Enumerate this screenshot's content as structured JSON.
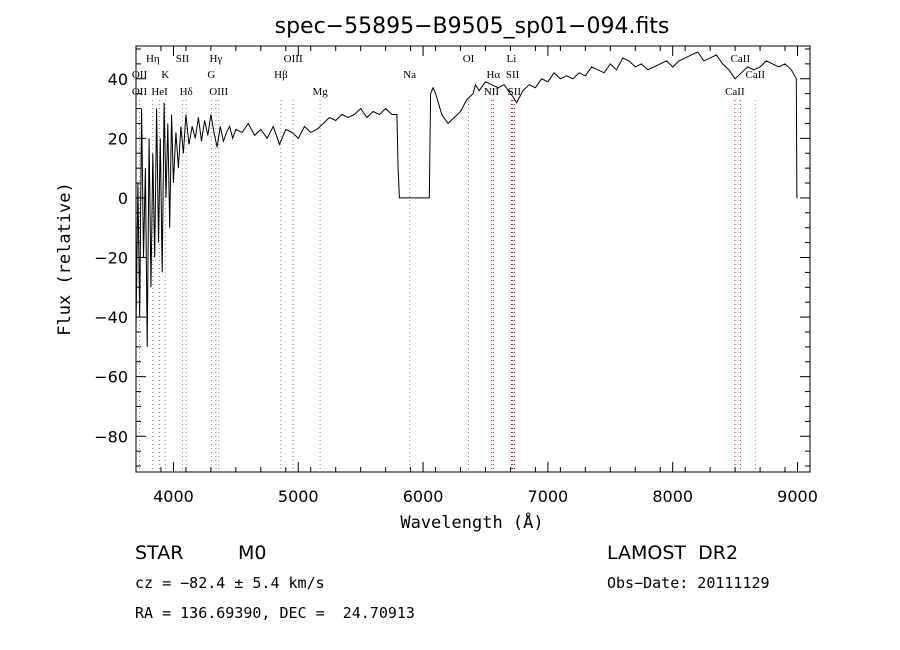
{
  "chart_data": {
    "type": "line",
    "title": "spec−55895−B9505_sp01−094.fits",
    "xlabel": "Wavelength (Å)",
    "ylabel": "Flux (relative)",
    "xlim": [
      3700,
      9100
    ],
    "ylim": [
      -92,
      51
    ],
    "x_ticks": [
      4000,
      5000,
      6000,
      7000,
      8000,
      9000
    ],
    "y_ticks": [
      -80,
      -60,
      -40,
      -20,
      0,
      20,
      40
    ],
    "series": [
      {
        "color": "#000000",
        "points": [
          [
            3700,
            -45
          ],
          [
            3715,
            5
          ],
          [
            3730,
            -40
          ],
          [
            3745,
            30
          ],
          [
            3760,
            -20
          ],
          [
            3775,
            10
          ],
          [
            3790,
            -50
          ],
          [
            3805,
            20
          ],
          [
            3820,
            -30
          ],
          [
            3835,
            15
          ],
          [
            3850,
            -20
          ],
          [
            3865,
            30
          ],
          [
            3880,
            -15
          ],
          [
            3895,
            20
          ],
          [
            3910,
            -25
          ],
          [
            3925,
            32
          ],
          [
            3940,
            0
          ],
          [
            3955,
            25
          ],
          [
            3970,
            -10
          ],
          [
            3985,
            28
          ],
          [
            4000,
            5
          ],
          [
            4020,
            22
          ],
          [
            4040,
            10
          ],
          [
            4060,
            24
          ],
          [
            4080,
            15
          ],
          [
            4100,
            28
          ],
          [
            4125,
            18
          ],
          [
            4150,
            24
          ],
          [
            4175,
            20
          ],
          [
            4200,
            27
          ],
          [
            4225,
            19
          ],
          [
            4250,
            26
          ],
          [
            4275,
            21
          ],
          [
            4300,
            28
          ],
          [
            4325,
            22
          ],
          [
            4350,
            17
          ],
          [
            4375,
            24
          ],
          [
            4400,
            19
          ],
          [
            4425,
            22
          ],
          [
            4450,
            24
          ],
          [
            4475,
            20
          ],
          [
            4500,
            23
          ],
          [
            4550,
            22
          ],
          [
            4600,
            25
          ],
          [
            4650,
            21
          ],
          [
            4700,
            23
          ],
          [
            4750,
            20
          ],
          [
            4800,
            24
          ],
          [
            4850,
            18
          ],
          [
            4900,
            23
          ],
          [
            4950,
            22
          ],
          [
            5000,
            20
          ],
          [
            5050,
            24
          ],
          [
            5100,
            22
          ],
          [
            5150,
            23
          ],
          [
            5200,
            25
          ],
          [
            5250,
            27
          ],
          [
            5300,
            26
          ],
          [
            5350,
            28
          ],
          [
            5400,
            27
          ],
          [
            5450,
            28
          ],
          [
            5500,
            30
          ],
          [
            5550,
            27
          ],
          [
            5600,
            29
          ],
          [
            5650,
            28
          ],
          [
            5700,
            30
          ],
          [
            5750,
            28
          ],
          [
            5790,
            28
          ],
          [
            5800,
            10
          ],
          [
            5810,
            0
          ],
          [
            5830,
            0
          ],
          [
            5900,
            0
          ],
          [
            6000,
            0
          ],
          [
            6050,
            0
          ],
          [
            6060,
            35
          ],
          [
            6080,
            37
          ],
          [
            6100,
            35
          ],
          [
            6150,
            28
          ],
          [
            6200,
            25
          ],
          [
            6250,
            27
          ],
          [
            6300,
            29
          ],
          [
            6350,
            33
          ],
          [
            6400,
            35
          ],
          [
            6420,
            38
          ],
          [
            6450,
            36
          ],
          [
            6500,
            39
          ],
          [
            6550,
            38
          ],
          [
            6600,
            37
          ],
          [
            6650,
            38
          ],
          [
            6700,
            35
          ],
          [
            6720,
            34
          ],
          [
            6750,
            32
          ],
          [
            6800,
            36
          ],
          [
            6850,
            38
          ],
          [
            6900,
            37
          ],
          [
            6950,
            40
          ],
          [
            7000,
            39
          ],
          [
            7050,
            42
          ],
          [
            7100,
            40
          ],
          [
            7150,
            41
          ],
          [
            7200,
            40
          ],
          [
            7250,
            42
          ],
          [
            7300,
            41
          ],
          [
            7350,
            44
          ],
          [
            7400,
            43
          ],
          [
            7450,
            42
          ],
          [
            7500,
            45
          ],
          [
            7550,
            43
          ],
          [
            7600,
            47
          ],
          [
            7650,
            46
          ],
          [
            7700,
            44
          ],
          [
            7750,
            45
          ],
          [
            7800,
            43
          ],
          [
            7850,
            44
          ],
          [
            7900,
            45
          ],
          [
            7950,
            46
          ],
          [
            8000,
            44
          ],
          [
            8050,
            46
          ],
          [
            8100,
            47
          ],
          [
            8150,
            48
          ],
          [
            8200,
            49
          ],
          [
            8250,
            46
          ],
          [
            8300,
            47
          ],
          [
            8350,
            48
          ],
          [
            8400,
            45
          ],
          [
            8450,
            43
          ],
          [
            8500,
            40
          ],
          [
            8550,
            42
          ],
          [
            8600,
            44
          ],
          [
            8650,
            43
          ],
          [
            8700,
            44
          ],
          [
            8750,
            46
          ],
          [
            8800,
            45
          ],
          [
            8850,
            44
          ],
          [
            8900,
            45
          ],
          [
            8950,
            43
          ],
          [
            8990,
            40
          ],
          [
            8995,
            0
          ],
          [
            9000,
            0
          ]
        ]
      }
    ],
    "lines": [
      {
        "label": "OII",
        "x": 3728,
        "color": "#888888",
        "row": 1
      },
      {
        "label": "OII",
        "x": 3728,
        "color": "#888888",
        "row": 2
      },
      {
        "label": "Hη",
        "x": 3835,
        "color": "#888888",
        "row": 0
      },
      {
        "label": "HeI",
        "x": 3889,
        "color": "#888888",
        "row": 2
      },
      {
        "label": "K",
        "x": 3934,
        "color": "#888888",
        "row": 1
      },
      {
        "label": "SII",
        "x": 4072,
        "color": "#888888",
        "row": 0
      },
      {
        "label": "Hδ",
        "x": 4102,
        "color": "#888888",
        "row": 2
      },
      {
        "label": "Hγ",
        "x": 4340,
        "color": "#888888",
        "row": 0
      },
      {
        "label": "G",
        "x": 4304,
        "color": "#888888",
        "row": 1
      },
      {
        "label": "OIII",
        "x": 4363,
        "color": "#888888",
        "row": 2
      },
      {
        "label": "Hβ",
        "x": 4861,
        "color": "#888888",
        "row": 1
      },
      {
        "label": "OIII",
        "x": 4959,
        "color": "#888888",
        "row": 0
      },
      {
        "label": "Mg",
        "x": 5175,
        "color": "#888888",
        "row": 2
      },
      {
        "label": "Na",
        "x": 5893,
        "color": "#888888",
        "row": 1
      },
      {
        "label": "OI",
        "x": 6364,
        "color": "#888888",
        "row": 0
      },
      {
        "label": "Hα",
        "x": 6563,
        "color": "#cc0000",
        "row": 1
      },
      {
        "label": "NII",
        "x": 6548,
        "color": "#888888",
        "row": 2
      },
      {
        "label": "Li",
        "x": 6708,
        "color": "#cc0000",
        "row": 0
      },
      {
        "label": "SII",
        "x": 6717,
        "color": "#cc0000",
        "row": 1
      },
      {
        "label": "SII",
        "x": 6731,
        "color": "#cc0000",
        "row": 2
      },
      {
        "label": "CaII",
        "x": 8542,
        "color": "#cc0000",
        "row": 0
      },
      {
        "label": "CaII",
        "x": 8662,
        "color": "#888888",
        "row": 1
      },
      {
        "label": "CaII",
        "x": 8498,
        "color": "#cc0000",
        "row": 2
      }
    ]
  },
  "info": {
    "class": "STAR",
    "subclass": "M0",
    "survey": "LAMOST  DR2",
    "cz": "cz = −82.4 ± 5.4 km/s",
    "obsdate": "Obs−Date: 20111129",
    "radec": "RA = 136.69390, DEC =  24.70913"
  }
}
